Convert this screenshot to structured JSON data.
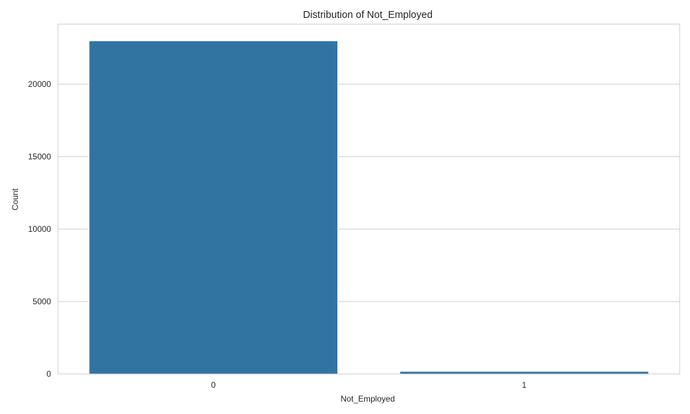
{
  "chart_data": {
    "type": "bar",
    "title": "Distribution of Not_Employed",
    "xlabel": "Not_Employed",
    "ylabel": "Count",
    "categories": [
      "0",
      "1"
    ],
    "values": [
      22990,
      180
    ],
    "ylim": [
      0,
      24140
    ],
    "yticks": [
      0,
      5000,
      10000,
      15000,
      20000
    ],
    "ytick_labels": [
      "0",
      "5000",
      "10000",
      "15000",
      "20000"
    ],
    "grid": "y",
    "legend": "none",
    "bar_color": "#3274a1",
    "grid_color": "#cccccc",
    "spine_color": "#cccccc"
  }
}
